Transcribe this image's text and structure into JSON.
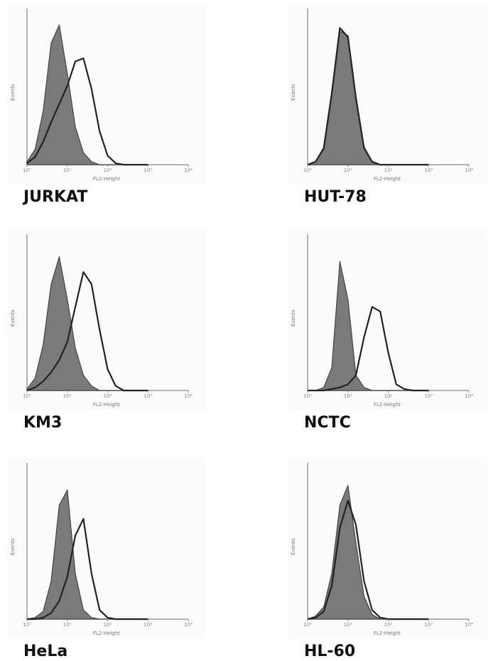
{
  "chart_data": [
    {
      "type": "line",
      "title": "JURKAT",
      "x_label": "FL2-Height",
      "y_label": "Events",
      "xscale": "log",
      "x": [
        1,
        1.58,
        2.51,
        3.98,
        6.31,
        10,
        15.8,
        25.1,
        39.8,
        63.1,
        100,
        158,
        251,
        398,
        631,
        1000
      ],
      "xlim": [
        1,
        10000
      ],
      "xticks": [
        {
          "value": 1,
          "label": "10⁰"
        },
        {
          "value": 10,
          "label": "10¹"
        },
        {
          "value": 100,
          "label": "10²"
        },
        {
          "value": 1000,
          "label": "10³"
        },
        {
          "value": 10000,
          "label": "10⁴"
        }
      ],
      "ylim": [
        0,
        100
      ],
      "series": [
        {
          "color": "#7a7a7a",
          "filled": true,
          "values": [
            2,
            10,
            35,
            80,
            92,
            60,
            25,
            8,
            2,
            0,
            0,
            0,
            0,
            0,
            0,
            0
          ]
        },
        {
          "color": "#222222",
          "filled": false,
          "values": [
            1,
            5,
            15,
            28,
            40,
            52,
            68,
            70,
            50,
            22,
            6,
            1,
            0,
            0,
            0,
            0
          ]
        }
      ]
    },
    {
      "type": "line",
      "title": "HUT-78",
      "x_label": "FL2-Height",
      "y_label": "Events",
      "xscale": "log",
      "x": [
        1,
        1.58,
        2.51,
        3.98,
        6.31,
        10,
        15.8,
        25.1,
        39.8,
        63.1,
        100,
        158,
        251,
        398,
        631,
        1000
      ],
      "xlim": [
        1,
        10000
      ],
      "xticks": [
        {
          "value": 1,
          "label": "10⁰"
        },
        {
          "value": 10,
          "label": "10¹"
        },
        {
          "value": 100,
          "label": "10²"
        },
        {
          "value": 1000,
          "label": "10³"
        },
        {
          "value": 10000,
          "label": "10⁴"
        }
      ],
      "ylim": [
        0,
        100
      ],
      "series": [
        {
          "color": "#7a7a7a",
          "filled": true,
          "values": [
            0,
            2,
            10,
            45,
            88,
            85,
            45,
            12,
            2,
            0,
            0,
            0,
            0,
            0,
            0,
            0
          ]
        },
        {
          "color": "#222222",
          "filled": false,
          "values": [
            0,
            2,
            11,
            47,
            90,
            84,
            44,
            11,
            2,
            0,
            0,
            0,
            0,
            0,
            0,
            0
          ]
        }
      ]
    },
    {
      "type": "line",
      "title": "KM3",
      "x_label": "FL2-Height",
      "y_label": "Events",
      "xscale": "log",
      "x": [
        1,
        1.58,
        2.51,
        3.98,
        6.31,
        10,
        15.8,
        25.1,
        39.8,
        63.1,
        100,
        158,
        251,
        398,
        631,
        1000
      ],
      "xlim": [
        1,
        10000
      ],
      "xticks": [
        {
          "value": 1,
          "label": "10⁰"
        },
        {
          "value": 10,
          "label": "10¹"
        },
        {
          "value": 100,
          "label": "10²"
        },
        {
          "value": 1000,
          "label": "10³"
        },
        {
          "value": 10000,
          "label": "10⁴"
        }
      ],
      "ylim": [
        0,
        100
      ],
      "series": [
        {
          "color": "#7a7a7a",
          "filled": true,
          "values": [
            1,
            8,
            30,
            70,
            88,
            60,
            28,
            10,
            3,
            0,
            0,
            0,
            0,
            0,
            0,
            0
          ]
        },
        {
          "color": "#222222",
          "filled": false,
          "values": [
            0,
            2,
            6,
            12,
            20,
            32,
            55,
            78,
            70,
            40,
            14,
            3,
            0,
            0,
            0,
            0
          ]
        }
      ]
    },
    {
      "type": "line",
      "title": "NCTC",
      "x_label": "FL2-Height",
      "y_label": "Events",
      "xscale": "log",
      "x": [
        1,
        1.58,
        2.51,
        3.98,
        6.31,
        10,
        15.8,
        25.1,
        39.8,
        63.1,
        100,
        158,
        251,
        398,
        631,
        1000
      ],
      "xlim": [
        1,
        10000
      ],
      "xticks": [
        {
          "value": 1,
          "label": "10⁰"
        },
        {
          "value": 10,
          "label": "10¹"
        },
        {
          "value": 100,
          "label": "10²"
        },
        {
          "value": 1000,
          "label": "10³"
        },
        {
          "value": 10000,
          "label": "10⁴"
        }
      ],
      "ylim": [
        0,
        100
      ],
      "series": [
        {
          "color": "#7a7a7a",
          "filled": true,
          "values": [
            0,
            0,
            2,
            15,
            85,
            60,
            10,
            2,
            0,
            0,
            0,
            0,
            0,
            0,
            0,
            0
          ]
        },
        {
          "color": "#222222",
          "filled": false,
          "values": [
            0,
            0,
            0,
            1,
            2,
            4,
            10,
            35,
            55,
            52,
            25,
            4,
            1,
            0,
            0,
            0
          ]
        }
      ]
    },
    {
      "type": "line",
      "title": "HeLa",
      "x_label": "FL2-Height",
      "y_label": "Events",
      "xscale": "log",
      "x": [
        1,
        1.58,
        2.51,
        3.98,
        6.31,
        10,
        15.8,
        25.1,
        39.8,
        63.1,
        100,
        158,
        251,
        398,
        631,
        1000
      ],
      "xlim": [
        1,
        10000
      ],
      "xticks": [
        {
          "value": 1,
          "label": "10⁰"
        },
        {
          "value": 10,
          "label": "10¹"
        },
        {
          "value": 100,
          "label": "10²"
        },
        {
          "value": 1000,
          "label": "10³"
        },
        {
          "value": 10000,
          "label": "10⁴"
        }
      ],
      "ylim": [
        0,
        100
      ],
      "series": [
        {
          "color": "#7a7a7a",
          "filled": true,
          "values": [
            0,
            1,
            5,
            25,
            75,
            85,
            30,
            6,
            1,
            0,
            0,
            0,
            0,
            0,
            0,
            0
          ]
        },
        {
          "color": "#222222",
          "filled": false,
          "values": [
            0,
            0,
            1,
            4,
            12,
            28,
            55,
            66,
            30,
            6,
            1,
            0,
            0,
            0,
            0,
            0
          ]
        }
      ]
    },
    {
      "type": "line",
      "title": "HL-60",
      "x_label": "FL2-Height",
      "y_label": "Events",
      "xscale": "log",
      "x": [
        1,
        1.58,
        2.51,
        3.98,
        6.31,
        10,
        15.8,
        25.1,
        39.8,
        63.1,
        100,
        158,
        251,
        398,
        631,
        1000
      ],
      "xlim": [
        1,
        10000
      ],
      "xticks": [
        {
          "value": 1,
          "label": "10⁰"
        },
        {
          "value": 10,
          "label": "10¹"
        },
        {
          "value": 100,
          "label": "10²"
        },
        {
          "value": 1000,
          "label": "10³"
        },
        {
          "value": 10000,
          "label": "10⁴"
        }
      ],
      "ylim": [
        0,
        100
      ],
      "series": [
        {
          "color": "#7a7a7a",
          "filled": true,
          "values": [
            0,
            2,
            8,
            30,
            75,
            88,
            50,
            15,
            3,
            0,
            0,
            0,
            0,
            0,
            0,
            0
          ]
        },
        {
          "color": "#222222",
          "filled": false,
          "values": [
            0,
            1,
            5,
            22,
            60,
            78,
            62,
            25,
            6,
            1,
            0,
            0,
            0,
            0,
            0,
            0
          ]
        }
      ]
    }
  ]
}
